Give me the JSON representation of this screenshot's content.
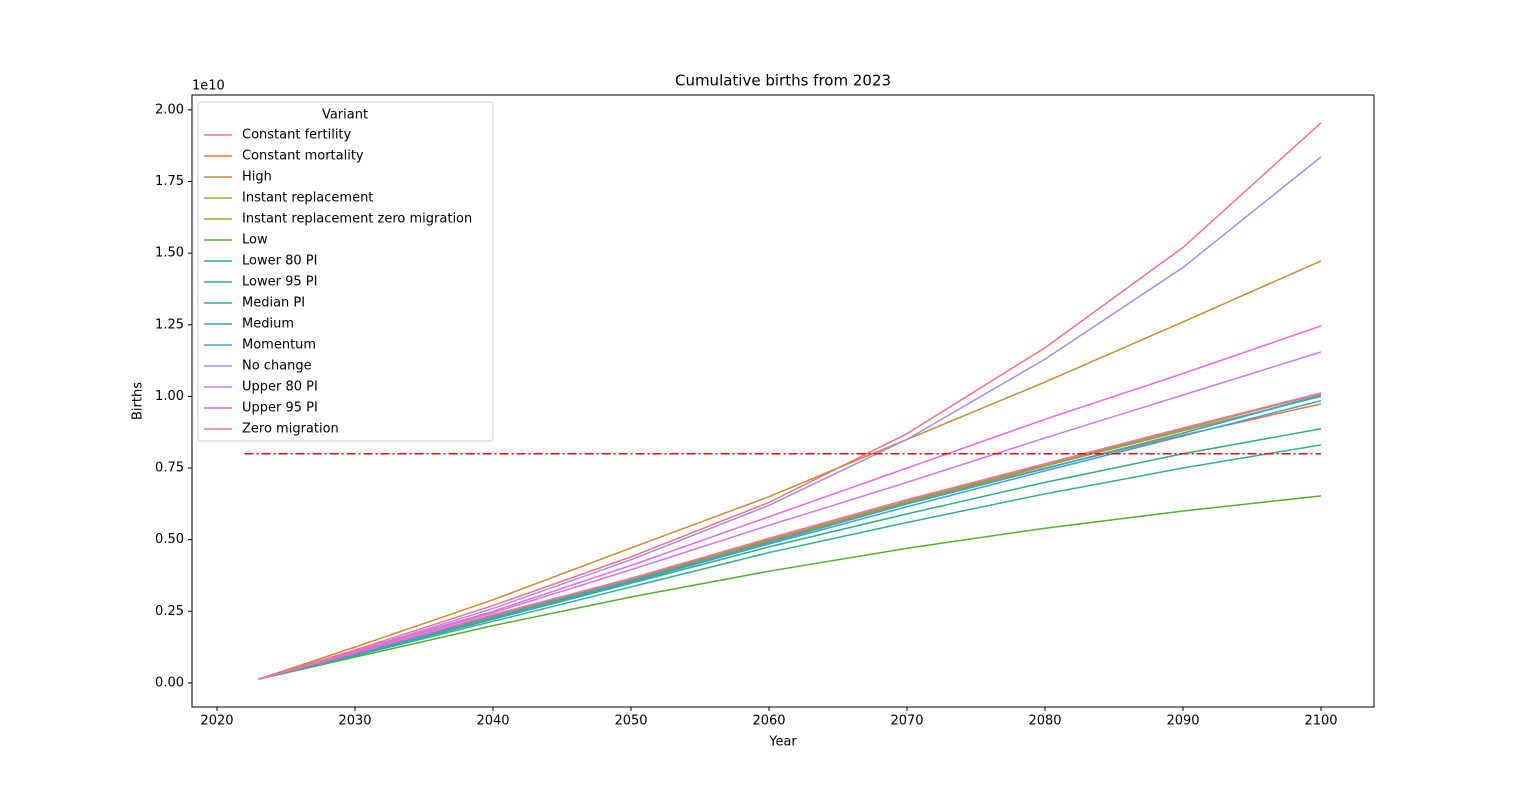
{
  "chart_data": {
    "type": "line",
    "title": "Cumulative births from 2023",
    "x_label": "Year",
    "y_label": "Births",
    "y_offset_label": "1e10",
    "legend_title": "Variant",
    "legend_position": "upper left",
    "x": [
      2023,
      2030,
      2040,
      2050,
      2060,
      2070,
      2080,
      2090,
      2100
    ],
    "series": [
      {
        "name": "Constant fertility",
        "color": "#f77189",
        "values": [
          0.013,
          0.115,
          0.27,
          0.44,
          0.63,
          0.87,
          1.17,
          1.52,
          1.955
        ]
      },
      {
        "name": "Constant mortality",
        "color": "#e9773a",
        "values": [
          0.013,
          0.103,
          0.235,
          0.36,
          0.495,
          0.63,
          0.75,
          0.865,
          0.974
        ]
      },
      {
        "name": "High",
        "color": "#cc8a32",
        "values": [
          0.013,
          0.125,
          0.29,
          0.471,
          0.65,
          0.85,
          1.05,
          1.26,
          1.473
        ]
      },
      {
        "name": "Instant replacement",
        "color": "#ad9c31",
        "values": [
          0.013,
          0.103,
          0.235,
          0.362,
          0.5,
          0.635,
          0.76,
          0.885,
          1.01
        ]
      },
      {
        "name": "Instant replacement zero migration",
        "color": "#8ea531",
        "values": [
          0.013,
          0.102,
          0.233,
          0.36,
          0.497,
          0.632,
          0.757,
          0.88,
          1.0
        ]
      },
      {
        "name": "Low",
        "color": "#50b131",
        "values": [
          0.013,
          0.09,
          0.2,
          0.3,
          0.39,
          0.47,
          0.54,
          0.6,
          0.653
        ]
      },
      {
        "name": "Lower 80 PI",
        "color": "#34ae78",
        "values": [
          0.013,
          0.098,
          0.222,
          0.348,
          0.475,
          0.59,
          0.7,
          0.8,
          0.887
        ]
      },
      {
        "name": "Lower 95 PI",
        "color": "#35ac9a",
        "values": [
          0.013,
          0.095,
          0.215,
          0.335,
          0.455,
          0.56,
          0.66,
          0.75,
          0.831
        ]
      },
      {
        "name": "Median PI",
        "color": "#37a9b0",
        "values": [
          0.013,
          0.1,
          0.228,
          0.355,
          0.49,
          0.625,
          0.748,
          0.872,
          1.003
        ]
      },
      {
        "name": "Medium",
        "color": "#39a6c8",
        "values": [
          0.013,
          0.1,
          0.228,
          0.355,
          0.49,
          0.625,
          0.748,
          0.872,
          1.005
        ]
      },
      {
        "name": "Momentum",
        "color": "#3ba1e0",
        "values": [
          0.013,
          0.1,
          0.226,
          0.352,
          0.485,
          0.615,
          0.74,
          0.862,
          0.985
        ]
      },
      {
        "name": "No change",
        "color": "#9f8ff2",
        "values": [
          0.013,
          0.11,
          0.26,
          0.43,
          0.62,
          0.85,
          1.13,
          1.45,
          1.836
        ]
      },
      {
        "name": "Upper 80 PI",
        "color": "#cf78ef",
        "values": [
          0.013,
          0.108,
          0.245,
          0.395,
          0.55,
          0.7,
          0.855,
          1.005,
          1.155
        ]
      },
      {
        "name": "Upper 95 PI",
        "color": "#f465e0",
        "values": [
          0.013,
          0.11,
          0.25,
          0.41,
          0.58,
          0.75,
          0.92,
          1.08,
          1.246
        ]
      },
      {
        "name": "Zero migration",
        "color": "#f56bb5",
        "values": [
          0.013,
          0.104,
          0.238,
          0.365,
          0.505,
          0.64,
          0.765,
          0.89,
          1.012
        ]
      }
    ],
    "hline": {
      "y": 0.8,
      "xmin": 2022,
      "xmax": 2100,
      "color": "#ff0000",
      "style": "dashdot"
    },
    "xlim": [
      2018.19,
      2103.84
    ],
    "ylim": [
      -0.084,
      2.052
    ],
    "xticks": [
      2020,
      2030,
      2040,
      2050,
      2060,
      2070,
      2080,
      2090,
      2100
    ],
    "yticks": [
      {
        "value": 0,
        "label": "0.00"
      },
      {
        "value": 0.25,
        "label": "0.25"
      },
      {
        "value": 0.5,
        "label": "0.50"
      },
      {
        "value": 0.75,
        "label": "0.75"
      },
      {
        "value": 1,
        "label": "1.00"
      },
      {
        "value": 1.25,
        "label": "1.25"
      },
      {
        "value": 1.5,
        "label": "1.50"
      },
      {
        "value": 1.75,
        "label": "1.75"
      },
      {
        "value": 2,
        "label": "2.00"
      }
    ]
  }
}
